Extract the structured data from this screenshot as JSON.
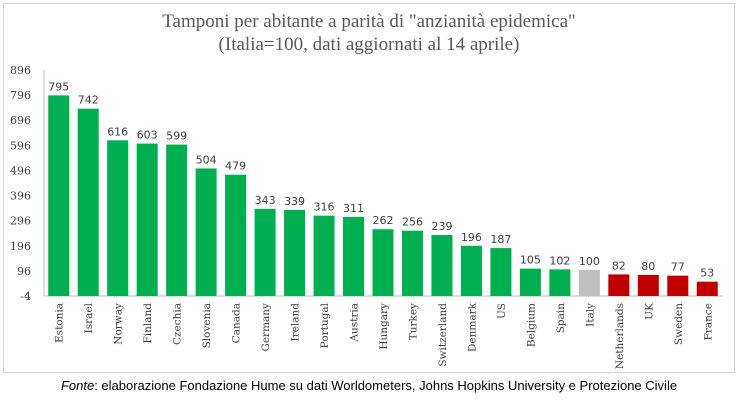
{
  "chart_data": {
    "type": "bar",
    "title": "Tamponi per abitante a parità di \"anzianità epidemica\"",
    "subtitle": "(Italia=100, dati aggiornati al 14 aprile)",
    "categories": [
      "Estonia",
      "Israel",
      "Norway",
      "Finland",
      "Czechia",
      "Slovenia",
      "Canada",
      "Germany",
      "Ireland",
      "Portugal",
      "Austria",
      "Hungary",
      "Turkey",
      "Switzerland",
      "Denmark",
      "US",
      "Belgium",
      "Spain",
      "Italy",
      "Netherlands",
      "UK",
      "Sweden",
      "France"
    ],
    "values": [
      795,
      742,
      616,
      603,
      599,
      504,
      479,
      343,
      339,
      316,
      311,
      262,
      256,
      239,
      196,
      187,
      105,
      102,
      100,
      82,
      80,
      77,
      53
    ],
    "colors": [
      "#00b050",
      "#00b050",
      "#00b050",
      "#00b050",
      "#00b050",
      "#00b050",
      "#00b050",
      "#00b050",
      "#00b050",
      "#00b050",
      "#00b050",
      "#00b050",
      "#00b050",
      "#00b050",
      "#00b050",
      "#00b050",
      "#00b050",
      "#00b050",
      "#bfbfbf",
      "#c00000",
      "#c00000",
      "#c00000",
      "#c00000"
    ],
    "yticks": [
      -4,
      96,
      196,
      296,
      396,
      496,
      596,
      696,
      796,
      896
    ],
    "ylim": [
      -4,
      896
    ],
    "grid": false,
    "legend": "none"
  },
  "source": {
    "label": "Fonte",
    "text": ": elaborazione Fondazione Hume su dati Worldometers, Johns Hopkins University e Protezione Civile"
  }
}
